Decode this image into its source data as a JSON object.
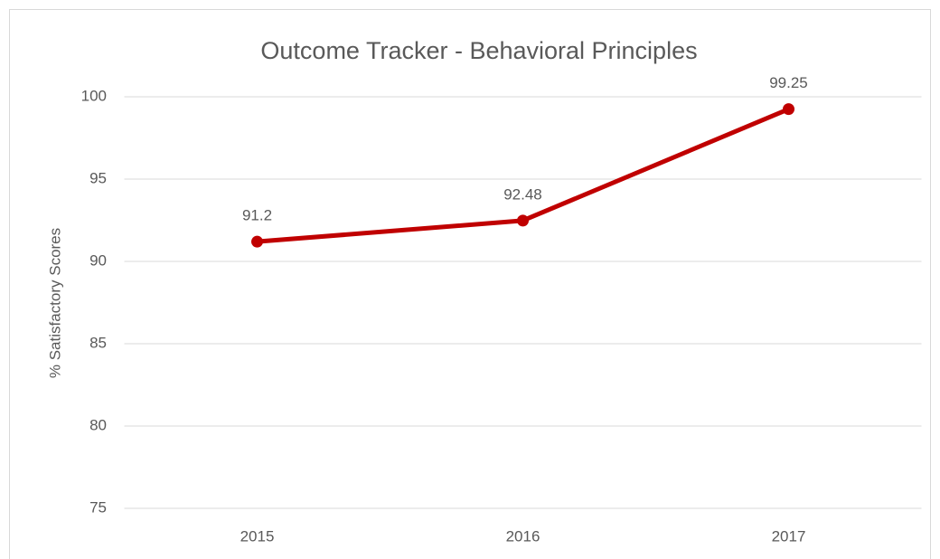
{
  "chart_data": {
    "type": "line",
    "title": "Outcome Tracker - Behavioral Principles",
    "y_label": "% Satisfactory Scores",
    "categories": [
      "2015",
      "2016",
      "2017"
    ],
    "series": [
      {
        "name": "% Satisfactory Scores",
        "color": "#c00000",
        "values": [
          91.2,
          92.48,
          99.25
        ]
      }
    ],
    "ylim": [
      75,
      100
    ],
    "yticks": [
      75,
      80,
      85,
      90,
      95,
      100
    ],
    "grid": true
  }
}
